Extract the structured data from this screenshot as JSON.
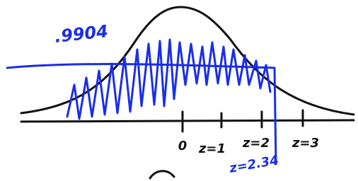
{
  "annotation": ".9904",
  "axis_labels": [
    "0",
    "z=1",
    "z=2",
    "z=3"
  ],
  "z_value": "z=2.34"
}
